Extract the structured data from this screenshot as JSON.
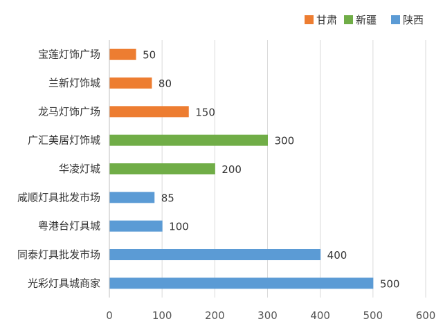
{
  "chart_data": {
    "type": "bar",
    "orientation": "horizontal",
    "categories": [
      "宝莲灯饰广场",
      "兰新灯饰城",
      "龙马灯饰广场",
      "广汇美居灯饰城",
      "华凌灯城",
      "咸顺灯具批发市场",
      "粤港台灯具城",
      "同泰灯具批发市场",
      "光彩灯具城商家"
    ],
    "values": [
      50,
      80,
      150,
      300,
      200,
      85,
      100,
      400,
      500
    ],
    "groups": [
      "甘肃",
      "甘肃",
      "甘肃",
      "新疆",
      "新疆",
      "陕西",
      "陕西",
      "陕西",
      "陕西"
    ],
    "legend": [
      {
        "name": "甘肃",
        "color": "#ED7D31"
      },
      {
        "name": "新疆",
        "color": "#70AD47"
      },
      {
        "name": "陕西",
        "color": "#5B9BD5"
      }
    ],
    "xlim": [
      0,
      600
    ],
    "xticks": [
      0,
      100,
      200,
      300,
      400,
      500,
      600
    ],
    "grid": true,
    "legend_position": "top-right",
    "title": "",
    "xlabel": "",
    "ylabel": ""
  }
}
